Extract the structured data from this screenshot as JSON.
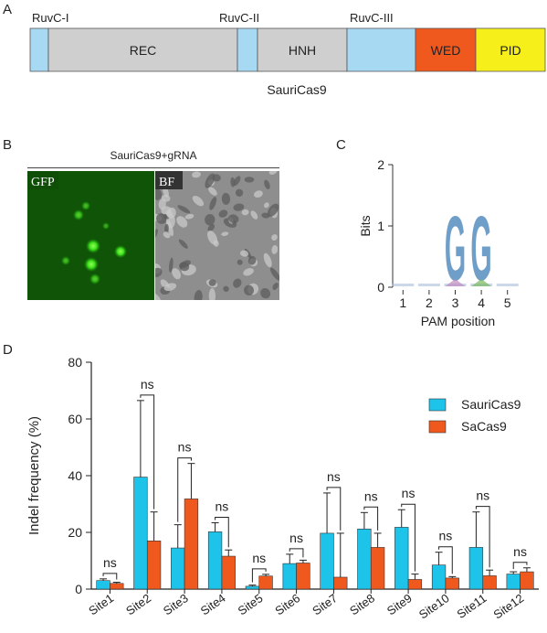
{
  "panel_labels": {
    "a": "A",
    "b": "B",
    "c": "C",
    "d": "D"
  },
  "domain_map": {
    "protein_name": "SauriCas9",
    "labels_above": [
      "RuvC-I",
      "RuvC-II",
      "RuvC-III"
    ],
    "segments": [
      {
        "name": "",
        "color": "#a7d9f3"
      },
      {
        "name": "REC",
        "color": "#cfcfcf"
      },
      {
        "name": "",
        "color": "#a7d9f3"
      },
      {
        "name": "HNH",
        "color": "#cfcfcf"
      },
      {
        "name": "",
        "color": "#a7d9f3"
      },
      {
        "name": "WED",
        "color": "#f0591e"
      },
      {
        "name": "PID",
        "color": "#f7ef1a"
      }
    ]
  },
  "microscopy": {
    "title": "SauriCas9+gRNA",
    "left_label": "GFP",
    "right_label": "BF"
  },
  "chart_data": [
    {
      "type": "sequence_logo",
      "ylabel": "Bits",
      "xlabel": "PAM position",
      "y_ticks": [
        "0",
        "1",
        "2"
      ],
      "ylim": [
        0,
        2
      ],
      "positions": [
        "1",
        "2",
        "3",
        "4",
        "5"
      ],
      "letters": [
        {
          "position": "3",
          "letter": "G",
          "bits": 1.1
        },
        {
          "position": "4",
          "letter": "G",
          "bits": 1.1
        }
      ]
    },
    {
      "type": "bar",
      "ylabel": "Indel frequency (%)",
      "ylim": [
        0,
        80
      ],
      "y_ticks": [
        "0",
        "20",
        "40",
        "60",
        "80"
      ],
      "categories": [
        "Site1",
        "Site2",
        "Site3",
        "Site4",
        "Site5",
        "Site6",
        "Site7",
        "Site8",
        "Site9",
        "Site10",
        "Site11",
        "Site12"
      ],
      "series": [
        {
          "name": "SauriCas9",
          "color": "#1ec3ea",
          "values": [
            3.0,
            39.5,
            14.5,
            20.2,
            1.0,
            9.0,
            19.7,
            21.2,
            21.8,
            8.5,
            14.7,
            5.3
          ],
          "errors": [
            0.6,
            27.0,
            8.2,
            3.2,
            0.4,
            3.3,
            14.2,
            5.8,
            6.2,
            4.5,
            12.5,
            0.8
          ]
        },
        {
          "name": "SaCas9",
          "color": "#f0591e",
          "values": [
            2.0,
            17.0,
            31.8,
            11.6,
            4.6,
            9.2,
            4.2,
            14.7,
            3.4,
            3.9,
            4.7,
            6.1
          ],
          "errors": [
            0.4,
            10.2,
            12.5,
            2.2,
            0.6,
            1.0,
            15.5,
            5.0,
            1.9,
            0.5,
            2.0,
            1.4
          ]
        }
      ],
      "significance": [
        "ns",
        "ns",
        "ns",
        "ns",
        "ns",
        "ns",
        "ns",
        "ns",
        "ns",
        "ns",
        "ns",
        "ns"
      ],
      "legend": "top-right"
    }
  ]
}
